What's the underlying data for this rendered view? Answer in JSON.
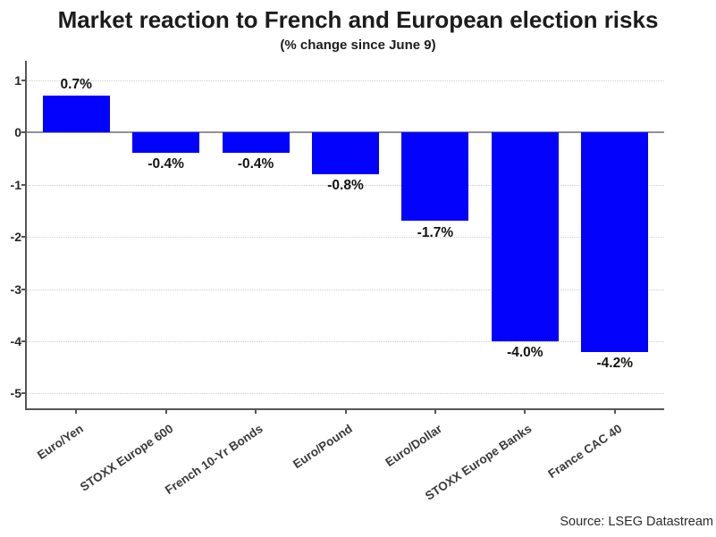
{
  "source_note": "Source: LSEG Datastream",
  "colors": {
    "bar": "#0202fd",
    "axis": "#565656",
    "zero_line": "#919191",
    "grid": "#cdcdcd",
    "title_text": "#1c1c1c",
    "value_label_text": "#141414",
    "category_label_text": "#3a3a3a"
  },
  "chart_data": {
    "type": "bar",
    "title": "Market reaction to French and European election risks",
    "subtitle": "(% change since June 9)",
    "categories": [
      "Euro/Yen",
      "STOXX Europe 600",
      "French 10-Yr Bonds",
      "Euro/Pound",
      "Euro/Dollar",
      "STOXX Europe Banks",
      "France CAC 40"
    ],
    "values": [
      0.7,
      -0.4,
      -0.4,
      -0.8,
      -1.7,
      -4.0,
      -4.2
    ],
    "value_labels": [
      "0.7%",
      "-0.4%",
      "-0.4%",
      "-0.8%",
      "-1.7%",
      "-4.0%",
      "-4.2%"
    ],
    "xlabel": "",
    "ylabel": "",
    "ylim": [
      -5.3,
      1.37
    ],
    "yticks": [
      1,
      0,
      -1,
      -2,
      -3,
      -4,
      -5
    ],
    "grid": "horizontal-dotted",
    "legend": "none",
    "bar_color": "#0202fd",
    "category_label_rotation_deg": 34
  }
}
